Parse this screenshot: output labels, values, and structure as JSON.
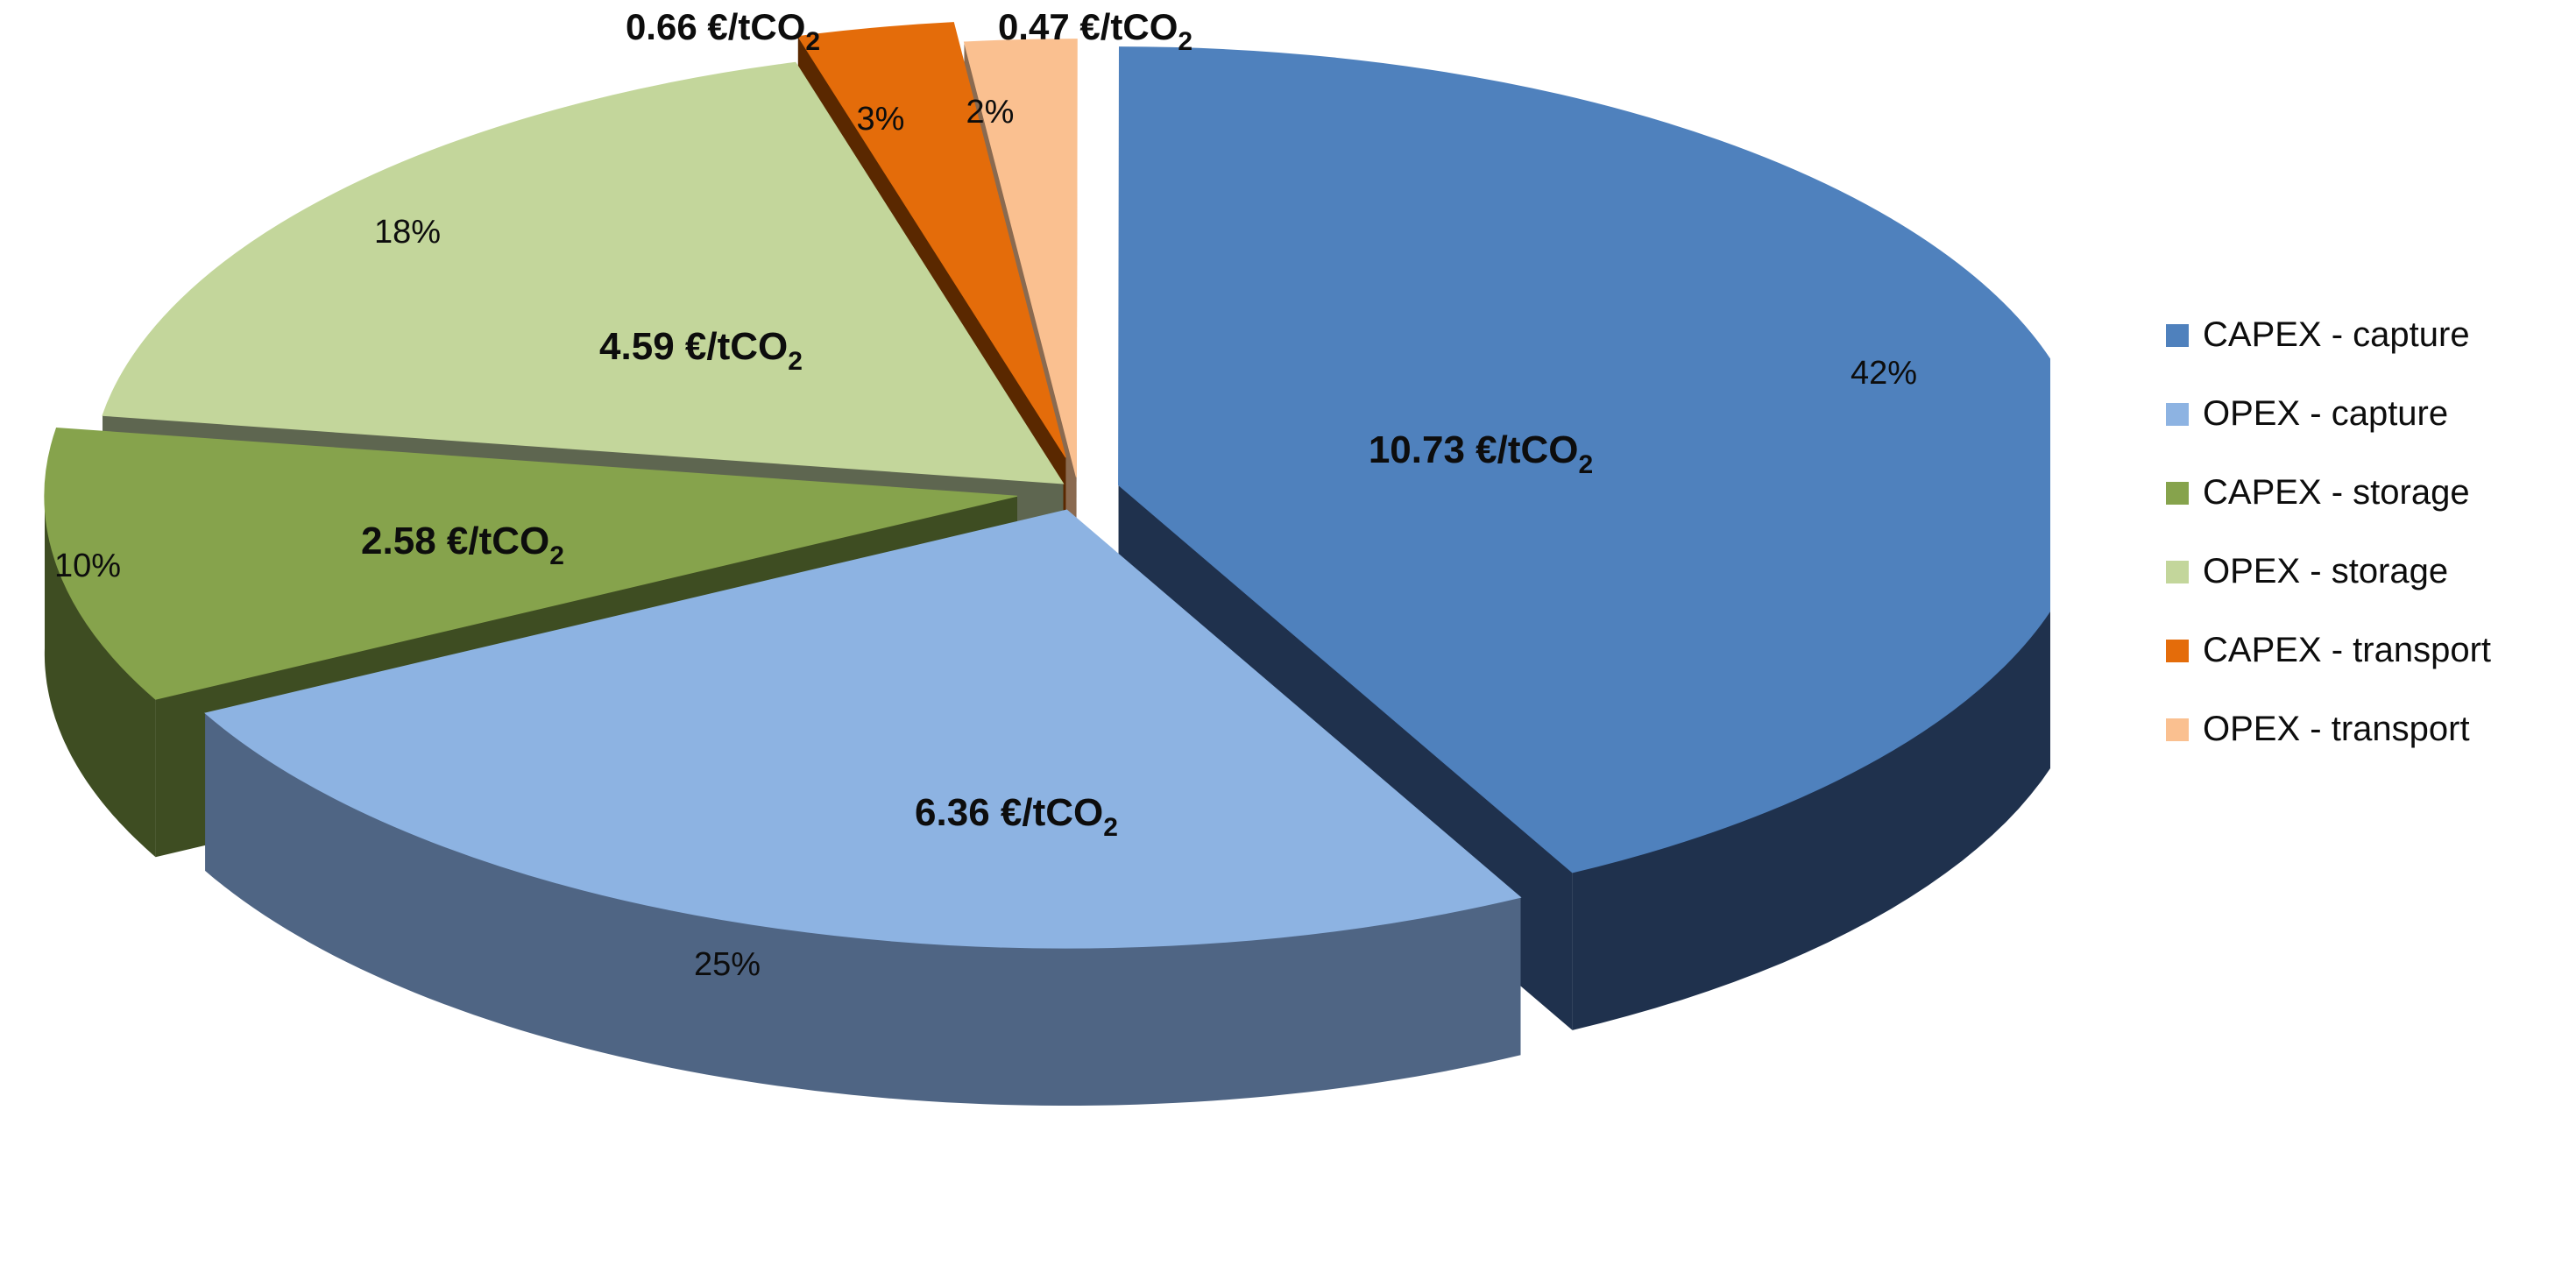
{
  "chart_data": {
    "type": "pie",
    "style": "3d-exploded",
    "unit": "€/tCO2",
    "slices": [
      {
        "name": "CAPEX - capture",
        "value": 10.73,
        "percent_label": "42%",
        "value_label": "10.73 €/tCO",
        "value_sub": "2",
        "color": "#4f81bd",
        "side_color": "#1f314d"
      },
      {
        "name": "OPEX - capture",
        "value": 6.36,
        "percent_label": "25%",
        "value_label": "6.36 €/tCO",
        "value_sub": "2",
        "color": "#8db3e2",
        "side_color": "#4f6584"
      },
      {
        "name": "CAPEX - storage",
        "value": 2.58,
        "percent_label": "10%",
        "value_label": "2.58 €/tCO",
        "value_sub": "2",
        "color": "#86a34c",
        "side_color": "#3e4d22"
      },
      {
        "name": "OPEX - storage",
        "value": 4.59,
        "percent_label": "18%",
        "value_label": "4.59 €/tCO",
        "value_sub": "2",
        "color": "#c3d69b",
        "side_color": "#5e6650"
      },
      {
        "name": "CAPEX - transport",
        "value": 0.66,
        "percent_label": "3%",
        "value_label": "0.66 €/tCO",
        "value_sub": "2",
        "color": "#e46c0a",
        "side_color": "#5a2800"
      },
      {
        "name": "OPEX - transport",
        "value": 0.47,
        "percent_label": "2%",
        "value_label": "0.47 €/tCO",
        "value_sub": "2",
        "color": "#fac090",
        "side_color": "#8a6a50"
      }
    ],
    "legend": {
      "position": "right",
      "entries": [
        "CAPEX - capture",
        "OPEX - capture",
        "CAPEX - storage",
        "OPEX - storage",
        "CAPEX - transport",
        "OPEX - transport"
      ]
    }
  }
}
